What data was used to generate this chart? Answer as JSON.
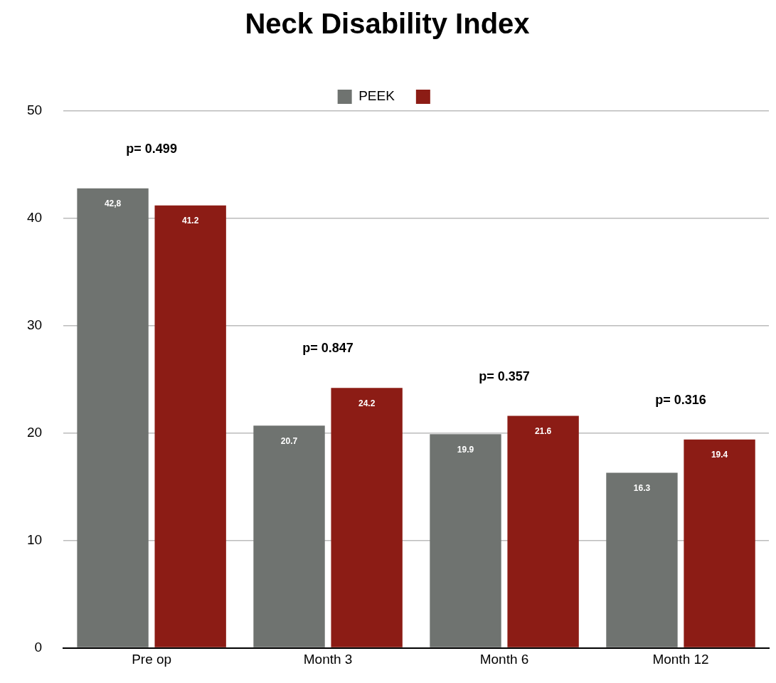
{
  "chart_data": {
    "type": "bar",
    "title": "Neck Disability Index",
    "categories": [
      "Pre op",
      "Month 3",
      "Month 6",
      "Month 12"
    ],
    "series": [
      {
        "name": "PEEK",
        "color": "#6f7370",
        "values": [
          42.8,
          20.7,
          19.9,
          16.3
        ],
        "value_labels": [
          "42,8",
          "20.7",
          "19.9",
          "16.3"
        ]
      },
      {
        "color": "#8c1c15",
        "values": [
          41.2,
          24.2,
          21.6,
          19.4
        ],
        "value_labels": [
          "41.2",
          "24.2",
          "21.6",
          "19.4"
        ]
      }
    ],
    "ylim": [
      0,
      50
    ],
    "yticks": [
      0,
      10,
      20,
      30,
      40,
      50
    ],
    "grid": "y",
    "legend": "top",
    "annotations": [
      "p= 0.499",
      "p= 0.847",
      "p= 0.357",
      "p= 0.316"
    ]
  }
}
